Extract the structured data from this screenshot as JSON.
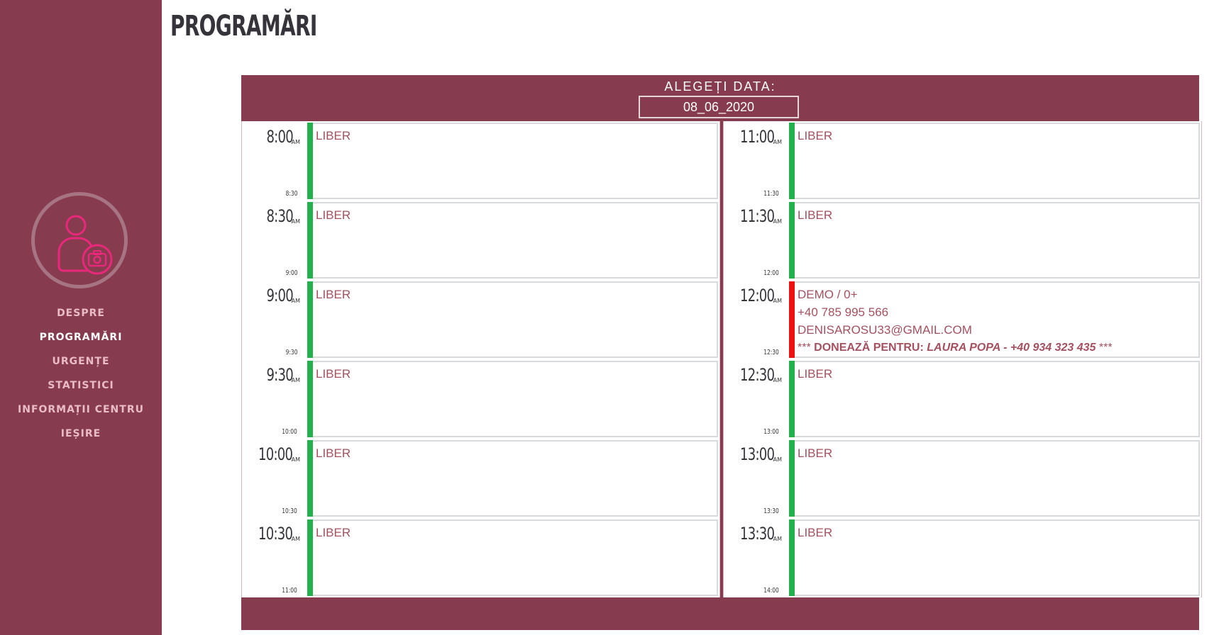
{
  "page": {
    "title": "PROGRAMĂRI"
  },
  "sidebar": {
    "avatar_icon": "user-camera-icon",
    "nav": [
      {
        "label": "DESPRE",
        "active": false
      },
      {
        "label": "PROGRAMĂRI",
        "active": true
      },
      {
        "label": "URGENȚE",
        "active": false
      },
      {
        "label": "STATISTICI",
        "active": false
      },
      {
        "label": "INFORMAȚII CENTRU",
        "active": false
      },
      {
        "label": "IEȘIRE",
        "active": false
      }
    ]
  },
  "calendar": {
    "date_label": "ALEGEȚI DATA:",
    "date_value": "08_06_2020",
    "left_slots": [
      {
        "time": "8:00",
        "ampm": "AM",
        "end": "8:30",
        "status": "free",
        "lines": [
          "LIBER"
        ]
      },
      {
        "time": "8:30",
        "ampm": "AM",
        "end": "9:00",
        "status": "free",
        "lines": [
          "LIBER"
        ]
      },
      {
        "time": "9:00",
        "ampm": "AM",
        "end": "9:30",
        "status": "free",
        "lines": [
          "LIBER"
        ]
      },
      {
        "time": "9:30",
        "ampm": "AM",
        "end": "10:00",
        "status": "free",
        "lines": [
          "LIBER"
        ]
      },
      {
        "time": "10:00",
        "ampm": "AM",
        "end": "10:30",
        "status": "free",
        "lines": [
          "LIBER"
        ]
      },
      {
        "time": "10:30",
        "ampm": "AM",
        "end": "11:00",
        "status": "free",
        "lines": [
          "LIBER"
        ]
      }
    ],
    "right_slots": [
      {
        "time": "11:00",
        "ampm": "AM",
        "end": "11:30",
        "status": "free",
        "lines": [
          "LIBER"
        ]
      },
      {
        "time": "11:30",
        "ampm": "AM",
        "end": "12:00",
        "status": "free",
        "lines": [
          "LIBER"
        ]
      },
      {
        "time": "12:00",
        "ampm": "AM",
        "end": "12:30",
        "status": "booked",
        "lines": [
          "DEMO   /   0+",
          "+40 785 995 566",
          "DENISAROSU33@GMAIL.COM"
        ],
        "donor": {
          "prefix": "***",
          "label": "DONEAZĂ PENTRU:",
          "name": "LAURA POPA - +40 934 323 435",
          "suffix": "***"
        }
      },
      {
        "time": "12:30",
        "ampm": "AM",
        "end": "13:00",
        "status": "free",
        "lines": [
          "LIBER"
        ]
      },
      {
        "time": "13:00",
        "ampm": "AM",
        "end": "13:30",
        "status": "free",
        "lines": [
          "LIBER"
        ]
      },
      {
        "time": "13:30",
        "ampm": "AM",
        "end": "14:00",
        "status": "free",
        "lines": [
          "LIBER"
        ]
      }
    ]
  },
  "colors": {
    "brand": "#873b4e",
    "free": "#22b14c",
    "booked": "#ee1111",
    "slot_text": "#a4505f"
  }
}
